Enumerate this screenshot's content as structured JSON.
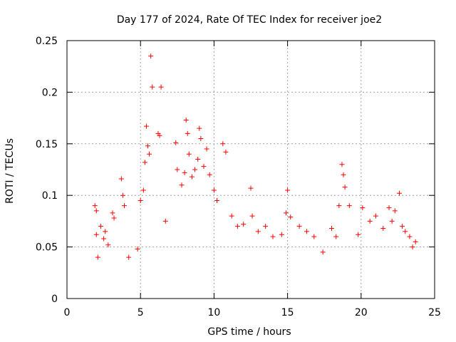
{
  "chart_data": {
    "type": "scatter",
    "title": "Day 177 of 2024, Rate Of TEC Index for receiver joe2",
    "xlabel": "GPS time / hours",
    "ylabel": "ROTI / TECUs",
    "xlim": [
      0,
      25
    ],
    "ylim": [
      0,
      0.25
    ],
    "xticks": [
      0,
      5,
      10,
      15,
      20,
      25
    ],
    "xtick_labels": [
      "0",
      "5",
      "10",
      "15",
      "20",
      "25"
    ],
    "yticks": [
      0,
      0.05,
      0.1,
      0.15,
      0.2,
      0.25
    ],
    "ytick_labels": [
      "0",
      "0.05",
      "0.1",
      "0.15",
      "0.2",
      "0.25"
    ],
    "grid": true,
    "marker": "+",
    "marker_color": "#ff0000",
    "series": [
      {
        "name": "ROTI",
        "x": [
          1.9,
          2.0,
          2.0,
          2.1,
          2.3,
          2.5,
          2.6,
          2.8,
          3.1,
          3.2,
          3.7,
          3.8,
          3.9,
          4.2,
          4.8,
          5.0,
          5.2,
          5.3,
          5.4,
          5.5,
          5.6,
          5.7,
          5.8,
          6.2,
          6.3,
          6.4,
          6.7,
          7.4,
          7.5,
          7.8,
          8.0,
          8.1,
          8.2,
          8.3,
          8.5,
          8.7,
          8.9,
          9.0,
          9.1,
          9.3,
          9.5,
          9.7,
          10.0,
          10.2,
          10.6,
          10.8,
          11.2,
          11.6,
          12.0,
          12.5,
          12.6,
          13.0,
          13.5,
          14.0,
          14.6,
          14.9,
          15.0,
          15.2,
          15.8,
          16.3,
          16.8,
          17.4,
          18.0,
          18.3,
          18.5,
          18.7,
          18.8,
          18.9,
          19.2,
          19.8,
          20.1,
          20.6,
          21.0,
          21.5,
          21.9,
          22.1,
          22.3,
          22.6,
          22.8,
          23.0,
          23.3,
          23.5,
          23.7
        ],
        "y": [
          0.09,
          0.085,
          0.062,
          0.04,
          0.07,
          0.058,
          0.065,
          0.052,
          0.083,
          0.078,
          0.116,
          0.1,
          0.09,
          0.04,
          0.048,
          0.095,
          0.105,
          0.132,
          0.167,
          0.148,
          0.14,
          0.235,
          0.205,
          0.16,
          0.158,
          0.205,
          0.075,
          0.151,
          0.125,
          0.11,
          0.122,
          0.173,
          0.16,
          0.14,
          0.118,
          0.125,
          0.135,
          0.165,
          0.155,
          0.128,
          0.145,
          0.12,
          0.105,
          0.095,
          0.15,
          0.142,
          0.08,
          0.07,
          0.072,
          0.107,
          0.08,
          0.065,
          0.07,
          0.06,
          0.062,
          0.083,
          0.105,
          0.079,
          0.07,
          0.065,
          0.06,
          0.045,
          0.068,
          0.06,
          0.09,
          0.13,
          0.12,
          0.108,
          0.09,
          0.062,
          0.088,
          0.075,
          0.08,
          0.068,
          0.088,
          0.075,
          0.085,
          0.102,
          0.07,
          0.065,
          0.06,
          0.05,
          0.055
        ]
      }
    ]
  }
}
